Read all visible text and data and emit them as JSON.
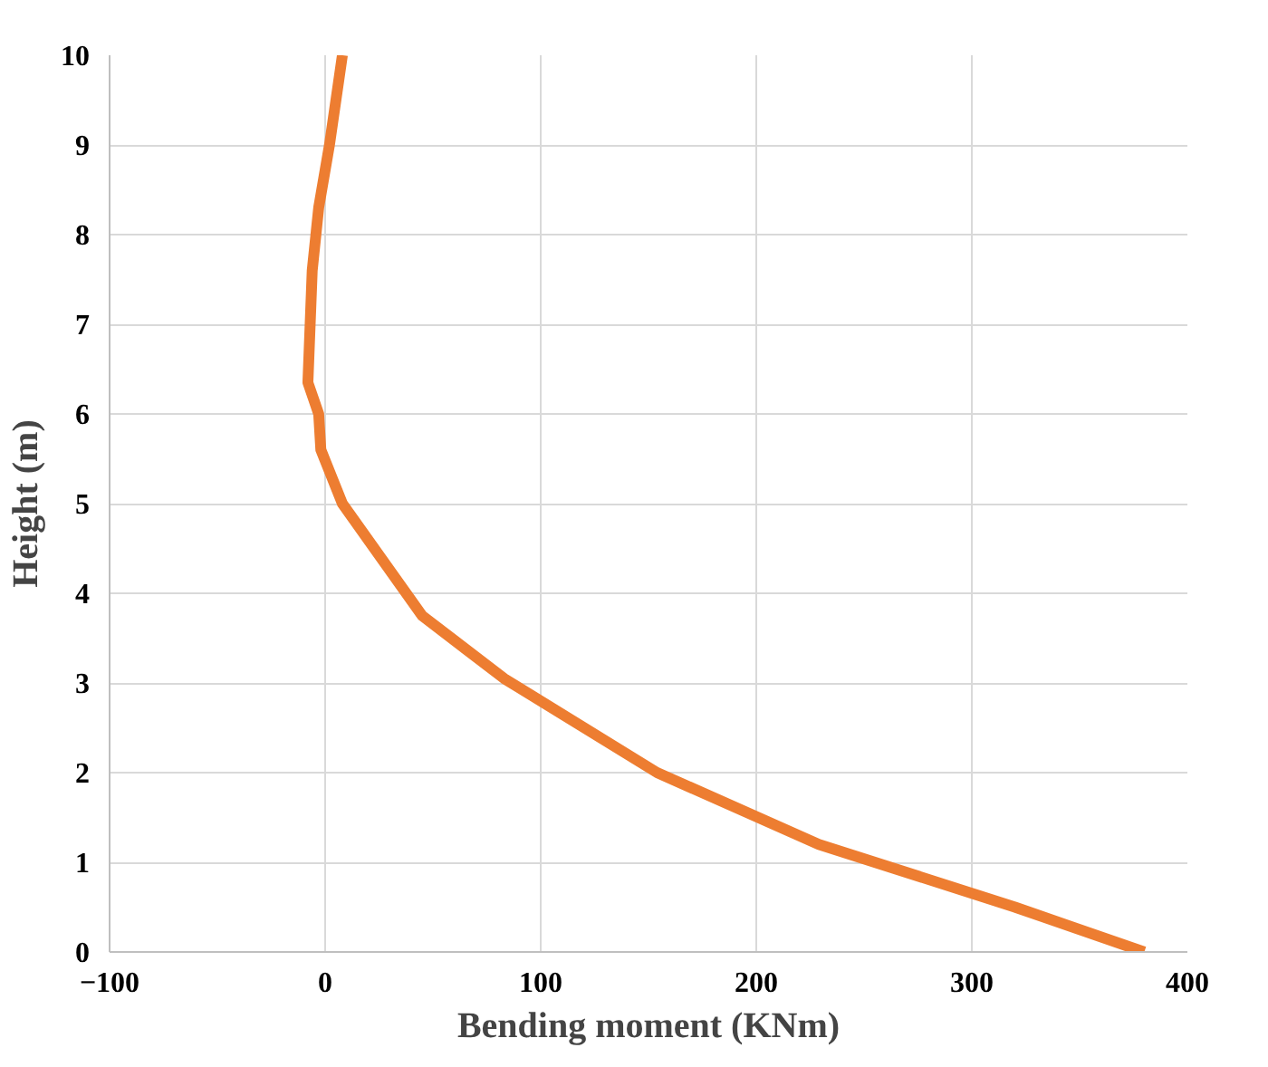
{
  "chart_data": {
    "type": "line",
    "xlabel": "Bending moment (KNm)",
    "ylabel": "Height (m)",
    "xlim": [
      -100,
      400
    ],
    "xticks": [
      -100,
      0,
      100,
      200,
      300,
      400
    ],
    "ylim": [
      0,
      10
    ],
    "yticks": [
      0,
      1,
      2,
      3,
      4,
      5,
      6,
      7,
      8,
      9,
      10
    ],
    "grid": true,
    "marker": "none",
    "line_style": "solid",
    "series": [
      {
        "color": "#ed7d31",
        "x": [
          380,
          320,
          229,
          154,
          83,
          45,
          8,
          -2,
          -3,
          -8,
          -6,
          -3,
          2,
          8
        ],
        "values": [
          0,
          0.5,
          1.2,
          2,
          3.05,
          3.75,
          5,
          5.6,
          6,
          6.35,
          7.6,
          8.3,
          9,
          10
        ]
      }
    ]
  }
}
